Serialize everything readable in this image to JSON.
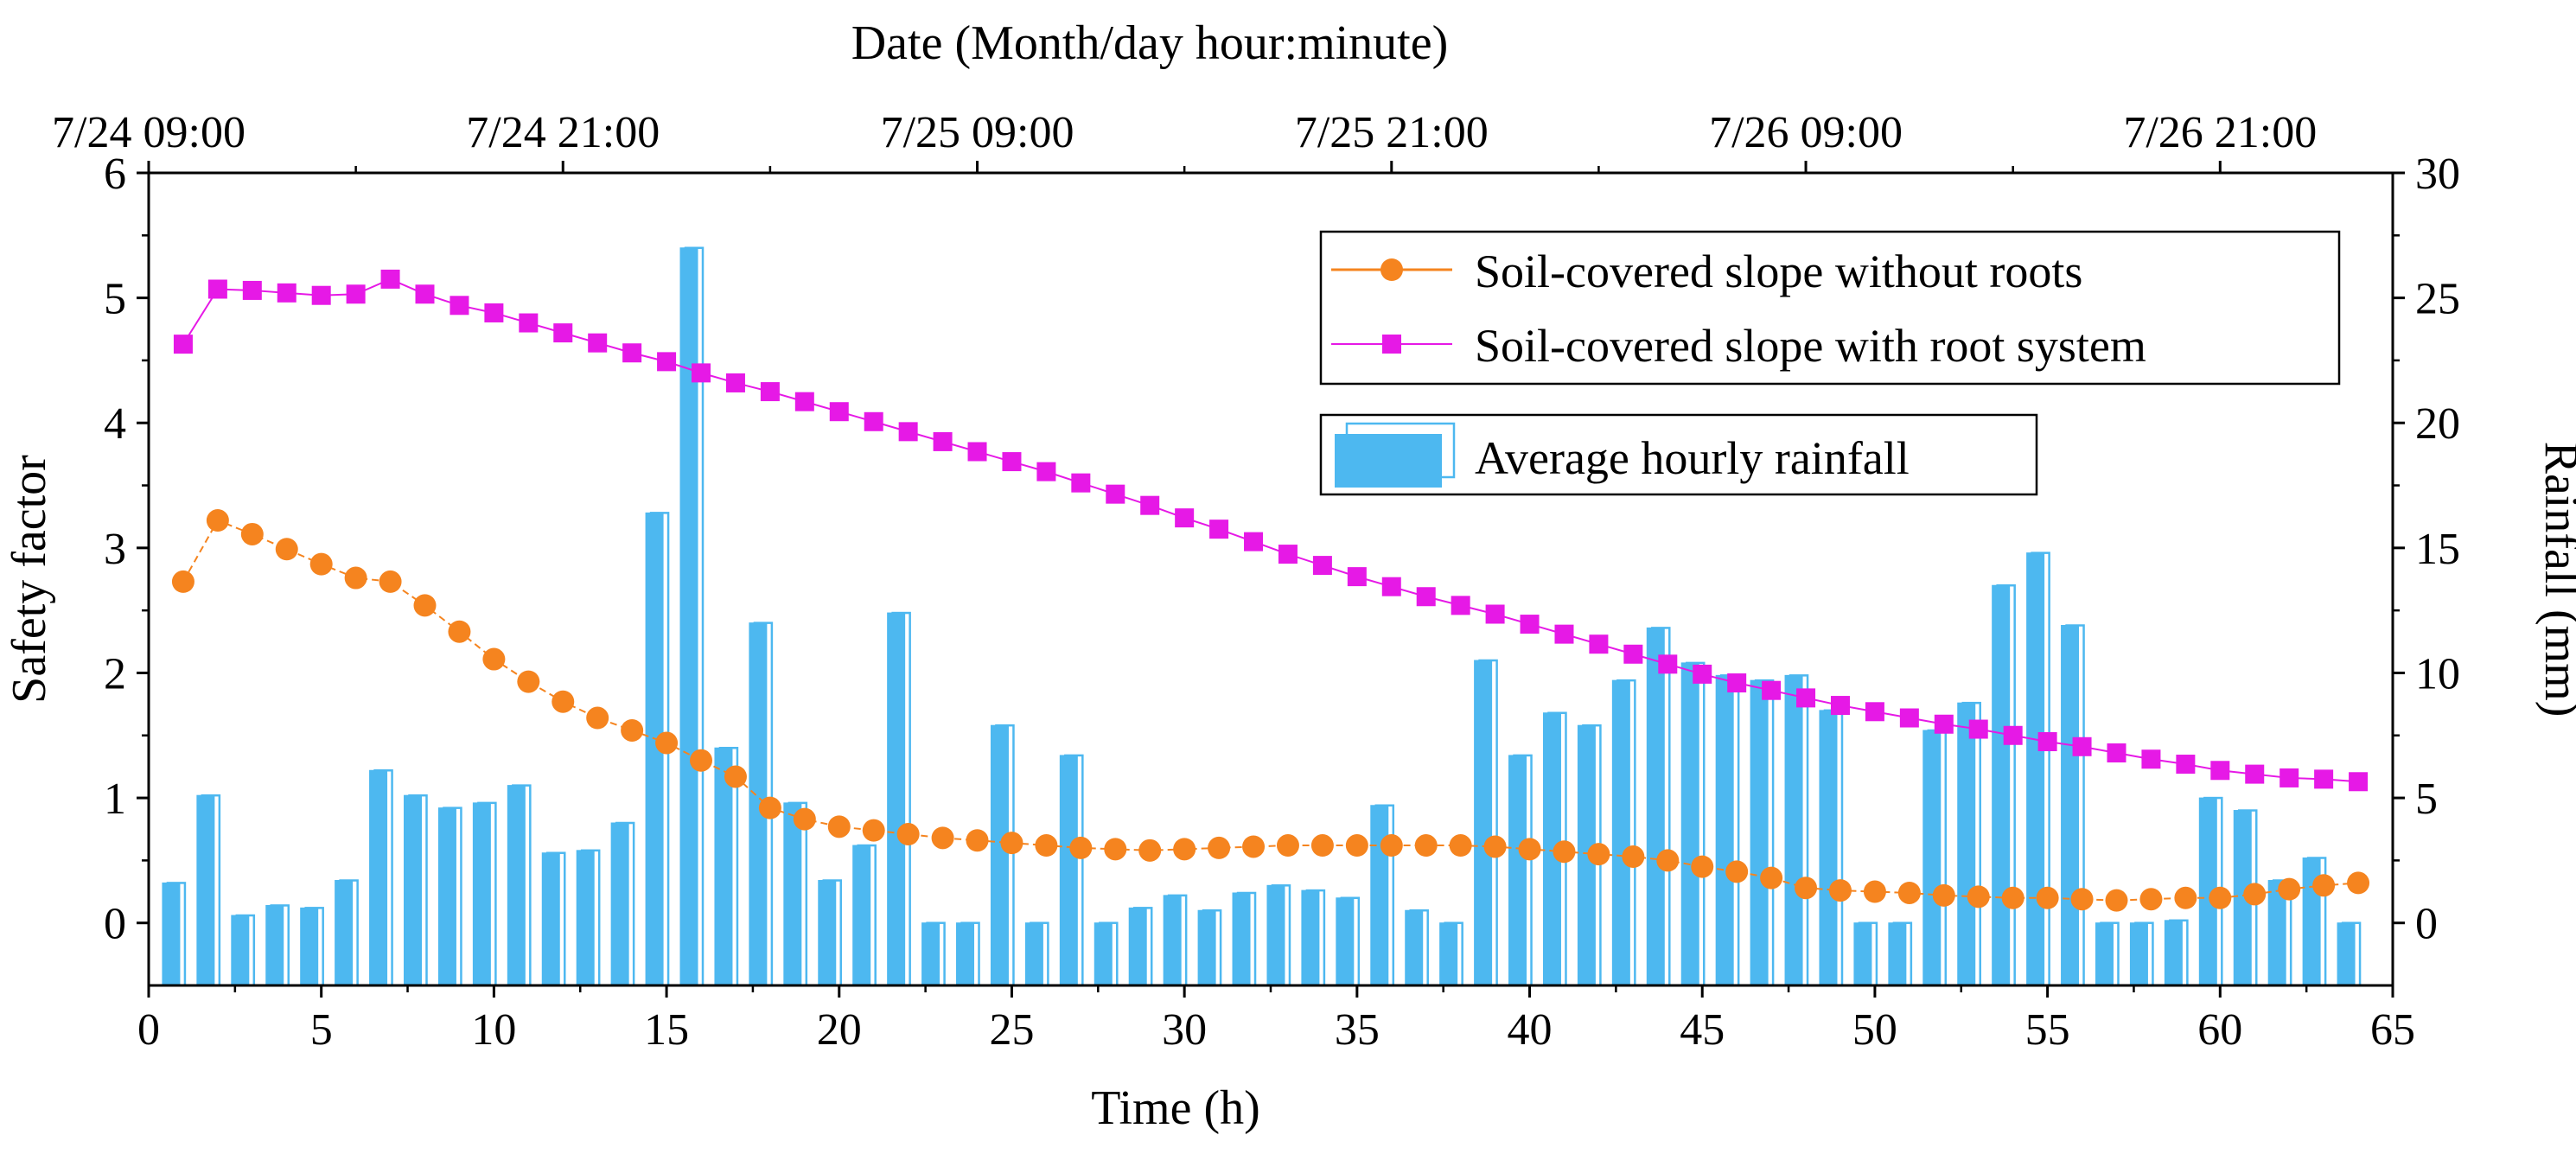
{
  "chart_data": {
    "type": "bar+line",
    "xlabel": "Time (h)",
    "ylabel_left": "Safety factor",
    "ylabel_right": "Rainfall (mm)",
    "top_axis_title": "Date (Month/day hour:minute)",
    "x_range": [
      0,
      65
    ],
    "x_ticks": [
      0,
      5,
      10,
      15,
      20,
      25,
      30,
      35,
      40,
      45,
      50,
      55,
      60,
      65
    ],
    "left_range": [
      -0.5,
      6
    ],
    "left_ticks": [
      0,
      1,
      2,
      3,
      4,
      5,
      6
    ],
    "right_range": [
      -2.5,
      30
    ],
    "right_ticks": [
      0,
      5,
      10,
      15,
      20,
      25,
      30
    ],
    "top_ticks": [
      {
        "x": 0,
        "label": "7/24 09:00"
      },
      {
        "x": 12,
        "label": "7/24 21:00"
      },
      {
        "x": 24,
        "label": "7/25 09:00"
      },
      {
        "x": 36,
        "label": "7/25 21:00"
      },
      {
        "x": 48,
        "label": "7/26 09:00"
      },
      {
        "x": 60,
        "label": "7/26 21:00"
      }
    ],
    "series": [
      {
        "name": "Soil-covered slope without roots",
        "type": "line",
        "axis": "left",
        "color": "#F5841F",
        "marker": "circle",
        "x": [
          1,
          2,
          3,
          4,
          5,
          6,
          7,
          8,
          9,
          10,
          11,
          12,
          13,
          14,
          15,
          16,
          17,
          18,
          19,
          20,
          21,
          22,
          23,
          24,
          25,
          26,
          27,
          28,
          29,
          30,
          31,
          32,
          33,
          34,
          35,
          36,
          37,
          38,
          39,
          40,
          41,
          42,
          43,
          44,
          45,
          46,
          47,
          48,
          49,
          50,
          51,
          52,
          53,
          54,
          55,
          56,
          57,
          58,
          59,
          60,
          61,
          62,
          63,
          64
        ],
        "values": [
          2.73,
          3.22,
          3.11,
          2.99,
          2.87,
          2.76,
          2.73,
          2.54,
          2.33,
          2.11,
          1.93,
          1.77,
          1.64,
          1.54,
          1.44,
          1.3,
          1.17,
          0.92,
          0.83,
          0.77,
          0.74,
          0.71,
          0.68,
          0.66,
          0.64,
          0.62,
          0.6,
          0.59,
          0.58,
          0.59,
          0.6,
          0.61,
          0.62,
          0.62,
          0.62,
          0.62,
          0.62,
          0.62,
          0.61,
          0.59,
          0.57,
          0.55,
          0.53,
          0.5,
          0.45,
          0.41,
          0.36,
          0.28,
          0.26,
          0.25,
          0.24,
          0.22,
          0.21,
          0.2,
          0.2,
          0.19,
          0.18,
          0.19,
          0.2,
          0.2,
          0.23,
          0.27,
          0.3,
          0.32
        ]
      },
      {
        "name": "Soil-covered slope with root system",
        "type": "line",
        "axis": "left",
        "color": "#E619E6",
        "marker": "square",
        "x": [
          1,
          2,
          3,
          4,
          5,
          6,
          7,
          8,
          9,
          10,
          11,
          12,
          13,
          14,
          15,
          16,
          17,
          18,
          19,
          20,
          21,
          22,
          23,
          24,
          25,
          26,
          27,
          28,
          29,
          30,
          31,
          32,
          33,
          34,
          35,
          36,
          37,
          38,
          39,
          40,
          41,
          42,
          43,
          44,
          45,
          46,
          47,
          48,
          49,
          50,
          51,
          52,
          53,
          54,
          55,
          56,
          57,
          58,
          59,
          60,
          61,
          62,
          63,
          64
        ],
        "values": [
          4.63,
          5.07,
          5.06,
          5.04,
          5.02,
          5.03,
          5.15,
          5.03,
          4.94,
          4.88,
          4.8,
          4.72,
          4.64,
          4.56,
          4.49,
          4.4,
          4.32,
          4.25,
          4.17,
          4.09,
          4.01,
          3.93,
          3.85,
          3.77,
          3.69,
          3.61,
          3.52,
          3.43,
          3.34,
          3.24,
          3.15,
          3.05,
          2.95,
          2.86,
          2.77,
          2.69,
          2.61,
          2.54,
          2.47,
          2.39,
          2.31,
          2.23,
          2.15,
          2.07,
          1.99,
          1.92,
          1.86,
          1.8,
          1.74,
          1.69,
          1.64,
          1.59,
          1.55,
          1.5,
          1.45,
          1.41,
          1.36,
          1.31,
          1.27,
          1.22,
          1.19,
          1.16,
          1.15,
          1.13
        ]
      },
      {
        "name": "Average hourly rainfall",
        "type": "bar",
        "axis": "right",
        "color": "#4DB8F0",
        "x": [
          1,
          2,
          3,
          4,
          5,
          6,
          7,
          8,
          9,
          10,
          11,
          12,
          13,
          14,
          15,
          16,
          17,
          18,
          19,
          20,
          21,
          22,
          23,
          24,
          25,
          26,
          27,
          28,
          29,
          30,
          31,
          32,
          33,
          34,
          35,
          36,
          37,
          38,
          39,
          40,
          41,
          42,
          43,
          44,
          45,
          46,
          47,
          48,
          49,
          50,
          51,
          52,
          53,
          54,
          55,
          56,
          57,
          58,
          59,
          60,
          61,
          62,
          63,
          64
        ],
        "values": [
          1.6,
          5.1,
          0.3,
          0.7,
          0.6,
          1.7,
          6.1,
          5.1,
          4.6,
          4.8,
          5.5,
          2.8,
          2.9,
          4.0,
          16.4,
          27.0,
          7.0,
          12.0,
          4.8,
          1.7,
          3.1,
          12.4,
          0,
          0,
          7.9,
          0,
          6.7,
          0,
          0.6,
          1.1,
          0.5,
          1.2,
          1.5,
          1.3,
          1.0,
          4.7,
          0.5,
          0,
          10.5,
          6.7,
          8.4,
          7.9,
          9.7,
          11.8,
          10.4,
          9.9,
          9.7,
          9.9,
          8.5,
          0,
          0,
          7.7,
          8.8,
          13.5,
          14.8,
          11.9,
          0,
          0,
          0.1,
          5.0,
          4.5,
          1.7,
          2.6,
          0
        ]
      }
    ]
  }
}
